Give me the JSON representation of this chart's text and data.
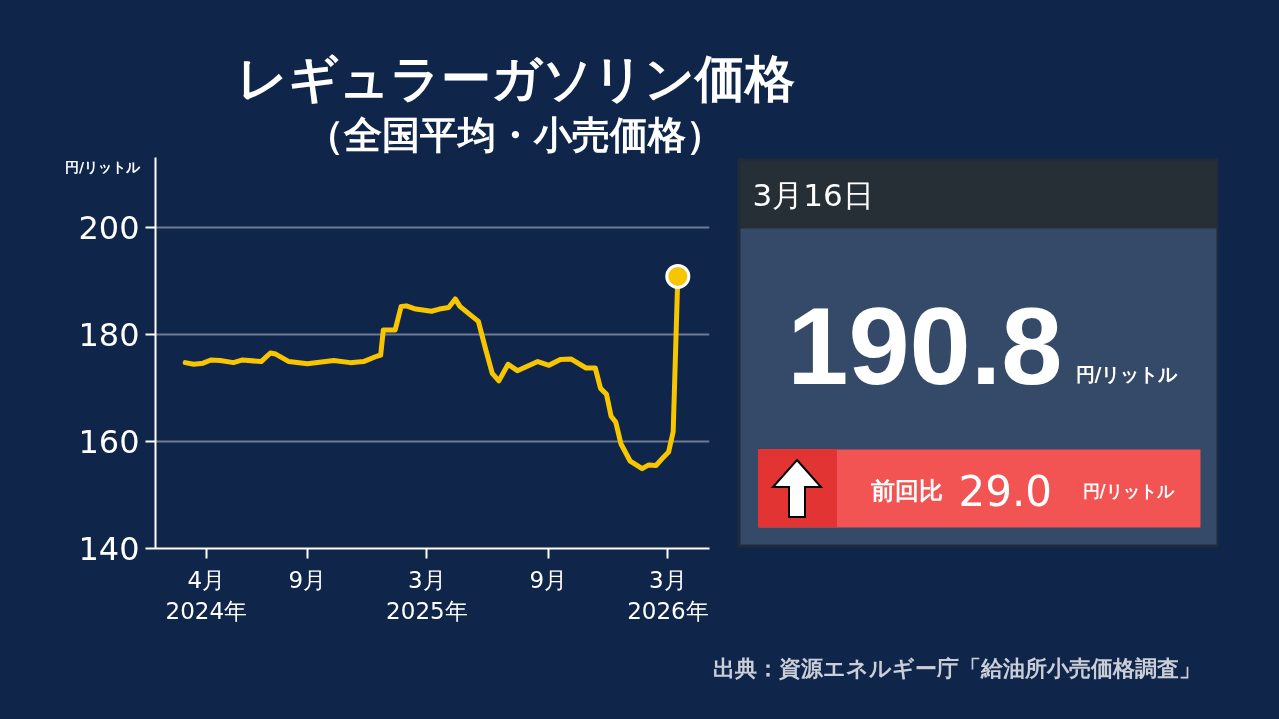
{
  "chart_data": [
    {
      "type": "line",
      "title": "レギュラーガソリン価格",
      "subtitle": "（全国平均・小売価格）",
      "ylabel": "円/リットル",
      "x": [
        "2024-02-29",
        "2024-03-13",
        "2024-03-27",
        "2024-04-08",
        "2024-04-22",
        "2024-05-12",
        "2024-05-26",
        "2024-06-23",
        "2024-07-07",
        "2024-07-15",
        "2024-08-04",
        "2024-09-01",
        "2024-10-11",
        "2024-11-05",
        "2024-11-25",
        "2024-12-15",
        "2024-12-21",
        "2024-12-25",
        "2025-01-12",
        "2025-01-21",
        "2025-01-29",
        "2025-02-12",
        "2025-03-08",
        "2025-03-20",
        "2025-04-03",
        "2025-04-13",
        "2025-04-20",
        "2025-05-18",
        "2025-05-29",
        "2025-06-08",
        "2025-06-18",
        "2025-07-02",
        "2025-07-16",
        "2025-08-16",
        "2025-09-02",
        "2025-09-19",
        "2025-10-05",
        "2025-10-28",
        "2025-11-11",
        "2025-11-19",
        "2025-11-28",
        "2025-12-05",
        "2025-12-12",
        "2025-12-20",
        "2026-01-03",
        "2026-01-21",
        "2026-01-31",
        "2026-02-11",
        "2026-02-22",
        "2026-03-02",
        "2026-03-09",
        "2026-03-16"
      ],
      "series": [
        {
          "color": "#f7c600",
          "values": [
            174.7,
            174.4,
            174.6,
            175.2,
            175.1,
            174.7,
            175.2,
            174.9,
            176.5,
            176.3,
            174.9,
            174.5,
            175.1,
            174.7,
            174.9,
            175.9,
            176.1,
            180.8,
            180.8,
            185.2,
            185.3,
            184.7,
            184.3,
            184.7,
            185.0,
            186.6,
            185.2,
            182.4,
            177.2,
            172.7,
            171.3,
            174.4,
            173.2,
            174.9,
            174.2,
            175.3,
            175.4,
            173.7,
            173.7,
            169.9,
            168.8,
            164.7,
            163.6,
            159.5,
            156.3,
            154.9,
            155.6,
            155.5,
            157.0,
            158.0,
            161.8,
            190.8
          ]
        },
        {
          "type": "scatter",
          "x": [
            "2026-03-16"
          ],
          "color": "#f7c600",
          "values": [
            190.8
          ]
        }
      ],
      "xlim": [
        "2024-01-15",
        "2026-05-03"
      ],
      "xticks": [
        {
          "value": "2024-04-01",
          "label": "4月\n2024年"
        },
        {
          "value": "2024-09-01",
          "label": "9月"
        },
        {
          "value": "2025-03-01",
          "label": "3月\n2025年"
        },
        {
          "value": "2025-09-01",
          "label": "9月"
        },
        {
          "value": "2026-03-01",
          "label": "3月\n2026年"
        }
      ],
      "ylim": [
        140,
        213
      ],
      "yticks": [
        140,
        160,
        180,
        200
      ],
      "grid": "y",
      "annotations": [
        "出典：資源エネルギー庁「給油所小売価格調査」"
      ]
    },
    {
      "type": "other",
      "title": "3月16日",
      "annotations": [
        "190.8",
        "円/リットル",
        "前回比",
        "29.0",
        "円/リットル"
      ]
    }
  ]
}
